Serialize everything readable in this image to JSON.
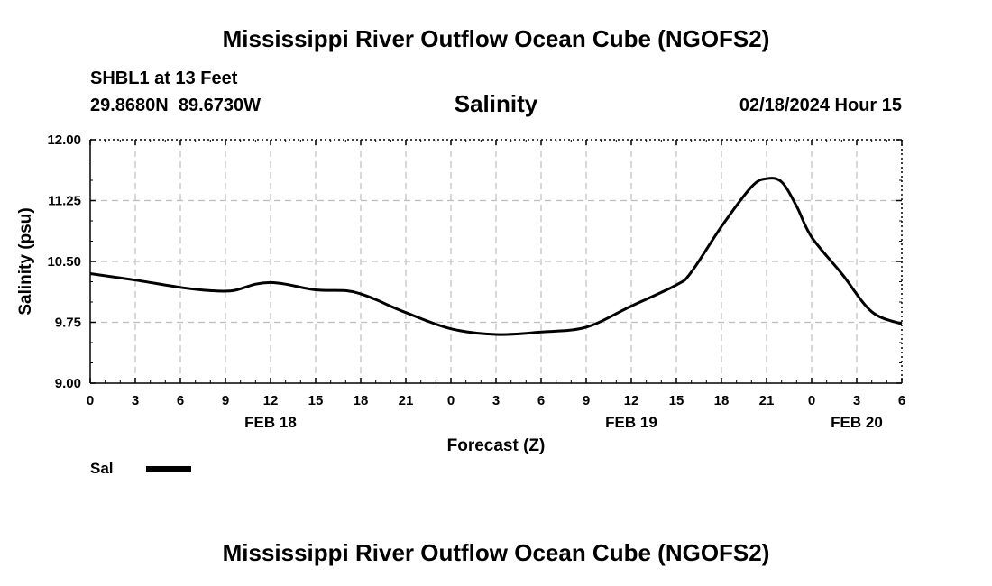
{
  "header": {
    "title": "Mississippi River Outflow Ocean Cube (NGOFS2)",
    "station": "SHBL1 at 13 Feet",
    "coordinates": "29.8680N  89.6730W",
    "variable": "Salinity",
    "date": "02/18/2024 Hour 15"
  },
  "footer": {
    "title": "Mississippi River Outflow Ocean Cube (NGOFS2)"
  },
  "legend": {
    "label": "Sal",
    "color": "#000000"
  },
  "chart_data": {
    "type": "line",
    "title": "Salinity",
    "xlabel": "Forecast (Z)",
    "ylabel": "Salinity (psu)",
    "xlim": [
      0,
      54
    ],
    "ylim": [
      9.0,
      12.0
    ],
    "grid": true,
    "yticks": [
      9.0,
      9.75,
      10.5,
      11.25,
      12.0
    ],
    "ytick_labels": [
      "9.00",
      "9.75",
      "10.50",
      "11.25",
      "12.00"
    ],
    "xticks": [
      0,
      3,
      6,
      9,
      12,
      15,
      18,
      21,
      24,
      27,
      30,
      33,
      36,
      39,
      42,
      45,
      48,
      51,
      54
    ],
    "xtick_labels": [
      "0",
      "3",
      "6",
      "9",
      "12",
      "15",
      "18",
      "21",
      "0",
      "3",
      "6",
      "9",
      "12",
      "15",
      "18",
      "21",
      "0",
      "3",
      "6"
    ],
    "day_labels": [
      {
        "x": 12,
        "label": "FEB 18"
      },
      {
        "x": 36,
        "label": "FEB 19"
      },
      {
        "x": 51,
        "label": "FEB 20"
      }
    ],
    "series": [
      {
        "name": "Sal",
        "x": [
          0,
          3,
          6,
          8,
          9.5,
          11,
          12,
          13,
          15,
          17,
          18,
          19,
          21,
          24,
          27,
          30,
          33,
          36,
          39,
          40,
          42,
          44,
          45,
          46,
          47,
          48,
          50,
          52,
          54
        ],
        "values": [
          10.35,
          10.27,
          10.18,
          10.14,
          10.14,
          10.22,
          10.24,
          10.22,
          10.15,
          10.14,
          10.1,
          10.03,
          9.87,
          9.67,
          9.6,
          9.63,
          9.69,
          9.95,
          10.21,
          10.37,
          10.93,
          11.42,
          11.52,
          11.48,
          11.18,
          10.8,
          10.35,
          9.88,
          9.73
        ]
      }
    ]
  }
}
